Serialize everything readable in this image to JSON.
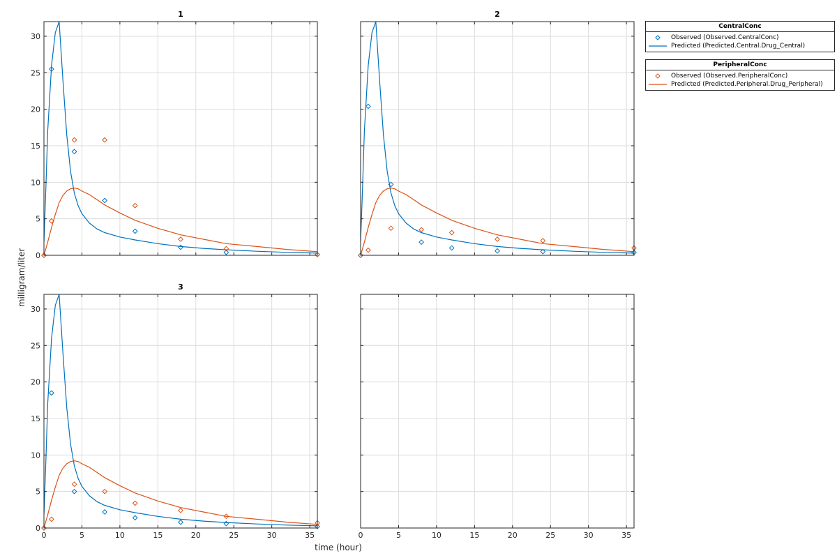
{
  "chart_data": {
    "type": "line",
    "xlabel": "time (hour)",
    "ylabel": "milligram/liter",
    "xlim": [
      0,
      36
    ],
    "ylim": [
      0,
      32
    ],
    "xticks": [
      0,
      5,
      10,
      15,
      20,
      25,
      30,
      35
    ],
    "yticks": [
      0,
      5,
      10,
      15,
      20,
      25,
      30
    ],
    "grid": true,
    "colors": {
      "central": "#0072BD",
      "peripheral": "#D95319"
    },
    "legend_groups": [
      {
        "title": "CentralConc",
        "entries": [
          {
            "label": "Observed (Observed.CentralConc)",
            "kind": "marker",
            "color": "#0072BD"
          },
          {
            "label": "Predicted (Predicted.Central.Drug_Central)",
            "kind": "line",
            "color": "#0072BD"
          }
        ]
      },
      {
        "title": "PeripheralConc",
        "entries": [
          {
            "label": "Observed (Observed.PeripheralConc)",
            "kind": "marker",
            "color": "#D95319"
          },
          {
            "label": "Predicted (Predicted.Peripheral.Drug_Peripheral)",
            "kind": "line",
            "color": "#D95319"
          }
        ]
      }
    ],
    "panels": [
      {
        "title": "1",
        "series": [
          {
            "name": "Observed (Observed.CentralConc)",
            "kind": "marker",
            "color": "#0072BD",
            "x": [
              0,
              1,
              4,
              8,
              12,
              18,
              24,
              36
            ],
            "y": [
              0,
              25.5,
              14.2,
              7.5,
              3.3,
              1.1,
              0.4,
              0.1
            ]
          },
          {
            "name": "Predicted (Predicted.Central.Drug_Central)",
            "kind": "line",
            "color": "#0072BD",
            "x": [
              0,
              0.25,
              0.5,
              1,
              1.5,
              2,
              2.5,
              3,
              3.5,
              4,
              4.5,
              5,
              6,
              7,
              8,
              10,
              12,
              15,
              18,
              21,
              24,
              28,
              32,
              36
            ],
            "y": [
              1.8,
              9,
              17,
              26,
              30.5,
              32,
              24,
              16.5,
              11.5,
              8.5,
              6.8,
              5.7,
              4.4,
              3.6,
              3.1,
              2.5,
              2.1,
              1.6,
              1.2,
              0.95,
              0.75,
              0.55,
              0.4,
              0.3
            ]
          },
          {
            "name": "Observed (Observed.PeripheralConc)",
            "kind": "marker",
            "color": "#D95319",
            "x": [
              0,
              1,
              4,
              8,
              12,
              18,
              24,
              36
            ],
            "y": [
              0,
              4.7,
              15.8,
              15.8,
              6.8,
              2.2,
              0.9,
              0.1
            ]
          },
          {
            "name": "Predicted (Predicted.Peripheral.Drug_Peripheral)",
            "kind": "line",
            "color": "#D95319",
            "x": [
              0,
              0.5,
              1,
              1.5,
              2,
              2.5,
              3,
              3.5,
              4,
              4.5,
              5,
              6,
              7,
              8,
              10,
              12,
              15,
              18,
              21,
              24,
              28,
              32,
              36
            ],
            "y": [
              0,
              1.8,
              3.8,
              5.6,
              7.2,
              8.2,
              8.8,
              9.1,
              9.2,
              9.1,
              8.8,
              8.3,
              7.6,
              6.9,
              5.8,
              4.8,
              3.7,
              2.8,
              2.2,
              1.6,
              1.2,
              0.8,
              0.5
            ]
          }
        ]
      },
      {
        "title": "2",
        "series": [
          {
            "name": "Observed (Observed.CentralConc)",
            "kind": "marker",
            "color": "#0072BD",
            "x": [
              0,
              1,
              4,
              8,
              12,
              18,
              24,
              36
            ],
            "y": [
              0,
              20.4,
              9.7,
              1.8,
              1.0,
              0.6,
              0.5,
              0.4
            ]
          },
          {
            "name": "Predicted (Predicted.Central.Drug_Central)",
            "kind": "line",
            "color": "#0072BD",
            "x": [
              0,
              0.25,
              0.5,
              1,
              1.5,
              2,
              2.5,
              3,
              3.5,
              4,
              4.5,
              5,
              6,
              7,
              8,
              10,
              12,
              15,
              18,
              21,
              24,
              28,
              32,
              36
            ],
            "y": [
              1.8,
              9,
              17,
              26,
              30.5,
              32,
              24,
              16.5,
              11.5,
              8.5,
              6.8,
              5.7,
              4.4,
              3.6,
              3.1,
              2.5,
              2.1,
              1.6,
              1.2,
              0.95,
              0.75,
              0.55,
              0.4,
              0.3
            ]
          },
          {
            "name": "Observed (Observed.PeripheralConc)",
            "kind": "marker",
            "color": "#D95319",
            "x": [
              0,
              1,
              4,
              8,
              12,
              18,
              24,
              36
            ],
            "y": [
              0,
              0.7,
              3.7,
              3.5,
              3.1,
              2.2,
              2.0,
              1.0
            ]
          },
          {
            "name": "Predicted (Predicted.Peripheral.Drug_Peripheral)",
            "kind": "line",
            "color": "#D95319",
            "x": [
              0,
              0.5,
              1,
              1.5,
              2,
              2.5,
              3,
              3.5,
              4,
              4.5,
              5,
              6,
              7,
              8,
              10,
              12,
              15,
              18,
              21,
              24,
              28,
              32,
              36
            ],
            "y": [
              0,
              1.8,
              3.8,
              5.6,
              7.2,
              8.2,
              8.8,
              9.1,
              9.2,
              9.1,
              8.8,
              8.3,
              7.6,
              6.9,
              5.8,
              4.8,
              3.7,
              2.8,
              2.2,
              1.6,
              1.2,
              0.8,
              0.5
            ]
          }
        ]
      },
      {
        "title": "3",
        "series": [
          {
            "name": "Observed (Observed.CentralConc)",
            "kind": "marker",
            "color": "#0072BD",
            "x": [
              0,
              1,
              4,
              8,
              12,
              18,
              24,
              36
            ],
            "y": [
              0,
              18.5,
              5.0,
              2.2,
              1.4,
              0.8,
              0.6,
              0.2
            ]
          },
          {
            "name": "Predicted (Predicted.Central.Drug_Central)",
            "kind": "line",
            "color": "#0072BD",
            "x": [
              0,
              0.25,
              0.5,
              1,
              1.5,
              2,
              2.5,
              3,
              3.5,
              4,
              4.5,
              5,
              6,
              7,
              8,
              10,
              12,
              15,
              18,
              21,
              24,
              28,
              32,
              36
            ],
            "y": [
              1.8,
              9,
              17,
              26,
              30.5,
              32,
              24,
              16.5,
              11.5,
              8.5,
              6.8,
              5.7,
              4.4,
              3.6,
              3.1,
              2.5,
              2.1,
              1.6,
              1.2,
              0.95,
              0.75,
              0.55,
              0.4,
              0.3
            ]
          },
          {
            "name": "Observed (Observed.PeripheralConc)",
            "kind": "marker",
            "color": "#D95319",
            "x": [
              0,
              1,
              4,
              8,
              12,
              18,
              24,
              36
            ],
            "y": [
              0,
              1.2,
              6.0,
              5.0,
              3.4,
              2.4,
              1.6,
              0.7
            ]
          },
          {
            "name": "Predicted (Predicted.Peripheral.Drug_Peripheral)",
            "kind": "line",
            "color": "#D95319",
            "x": [
              0,
              0.5,
              1,
              1.5,
              2,
              2.5,
              3,
              3.5,
              4,
              4.5,
              5,
              6,
              7,
              8,
              10,
              12,
              15,
              18,
              21,
              24,
              28,
              32,
              36
            ],
            "y": [
              0,
              1.8,
              3.8,
              5.6,
              7.2,
              8.2,
              8.8,
              9.1,
              9.2,
              9.1,
              8.8,
              8.3,
              7.6,
              6.9,
              5.8,
              4.8,
              3.7,
              2.8,
              2.2,
              1.6,
              1.2,
              0.8,
              0.5
            ]
          }
        ]
      },
      {
        "title": "",
        "series": []
      }
    ]
  }
}
